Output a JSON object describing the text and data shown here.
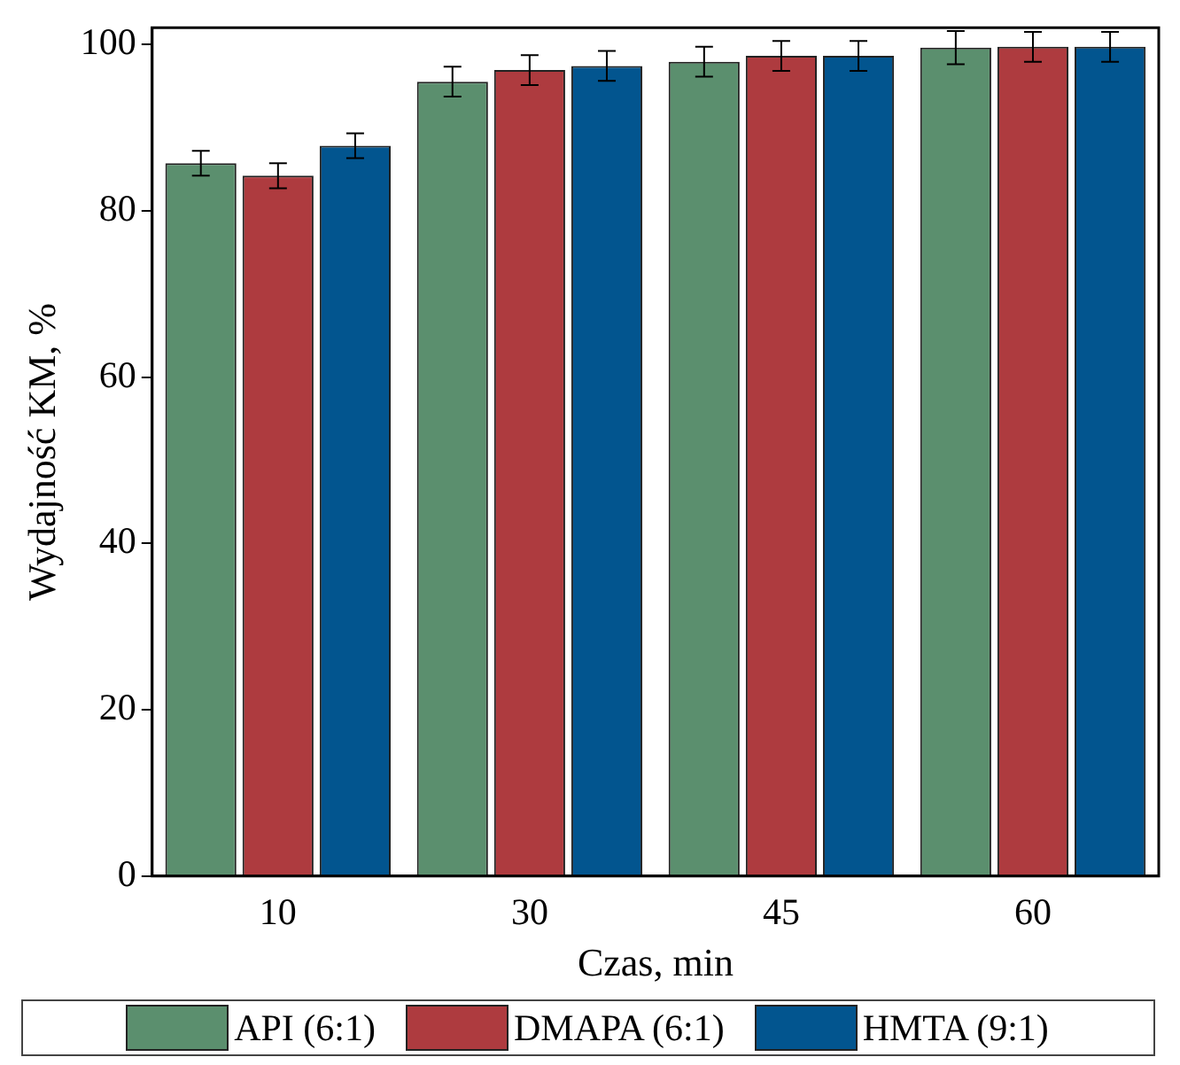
{
  "chart_data": {
    "type": "bar",
    "xlabel": "Czas, min",
    "ylabel": "Wydajność KM, %",
    "categories": [
      "10",
      "30",
      "45",
      "60"
    ],
    "series": [
      {
        "name": "API (6:1)",
        "color": "#5b8f6e",
        "values": [
          85.7,
          95.5,
          97.9,
          99.6
        ],
        "errors": [
          1.5,
          1.8,
          1.8,
          2
        ]
      },
      {
        "name": "DMAPA (6:1)",
        "color": "#ae3b3f",
        "values": [
          84.2,
          96.9,
          98.6,
          99.7
        ],
        "errors": [
          1.5,
          1.8,
          1.8,
          1.8
        ]
      },
      {
        "name": "HMTA (9:1)",
        "color": "#02558f",
        "values": [
          87.8,
          97.4,
          98.6,
          99.7
        ],
        "errors": [
          1.5,
          1.8,
          1.8,
          1.8
        ]
      }
    ],
    "ylim": [
      0,
      102
    ],
    "yticks": [
      0,
      20,
      40,
      60,
      80,
      100
    ],
    "grid": false,
    "legend": "bottom"
  }
}
